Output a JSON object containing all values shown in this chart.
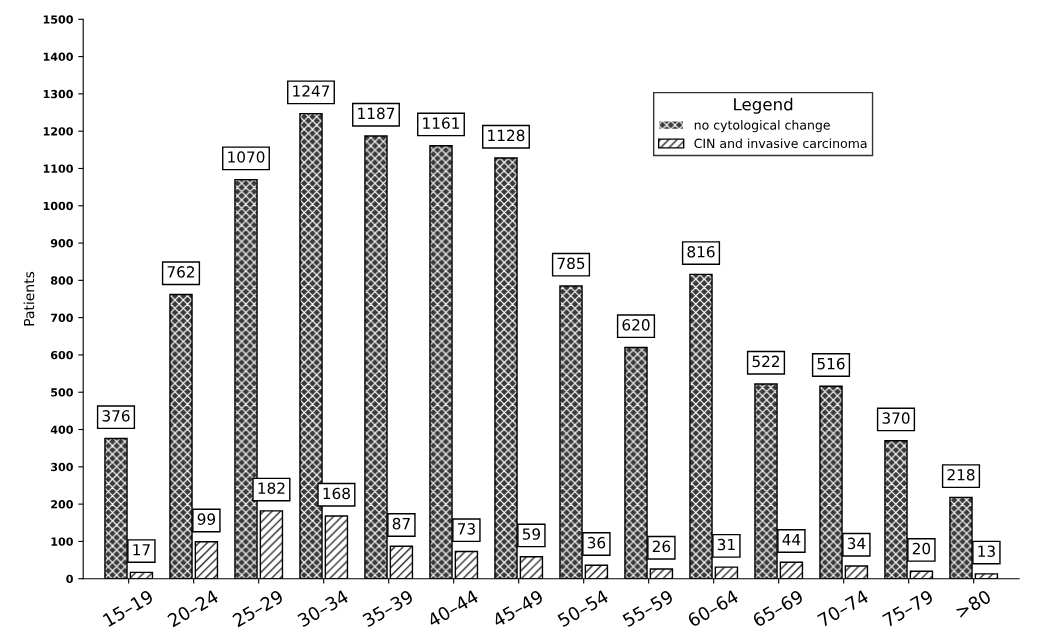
{
  "chart_data": {
    "type": "bar",
    "ylabel": "Patients",
    "categories": [
      "15–19",
      "20–24",
      "25–29",
      "30–34",
      "35–39",
      "40–44",
      "45–49",
      "50–54",
      "55–59",
      "60–64",
      "65–69",
      "70–74",
      "75–79",
      ">80"
    ],
    "series": [
      {
        "name": "no cytological change",
        "color": "#3a3a3a",
        "values": [
          376,
          762,
          1070,
          1247,
          1187,
          1161,
          1128,
          785,
          620,
          816,
          522,
          516,
          370,
          218
        ]
      },
      {
        "name": "CIN and invasive carcinoma",
        "color": "#ffffff",
        "values": [
          17,
          99,
          182,
          168,
          87,
          73,
          59,
          36,
          26,
          31,
          44,
          34,
          20,
          13
        ]
      }
    ],
    "ylim": [
      0,
      1500
    ],
    "yticks": [
      0,
      100,
      200,
      300,
      400,
      500,
      600,
      700,
      800,
      900,
      1000,
      1100,
      1200,
      1300,
      1400,
      1500
    ],
    "legend_title": "Legend",
    "legend": "top right",
    "data_labels": true,
    "grid": false
  }
}
